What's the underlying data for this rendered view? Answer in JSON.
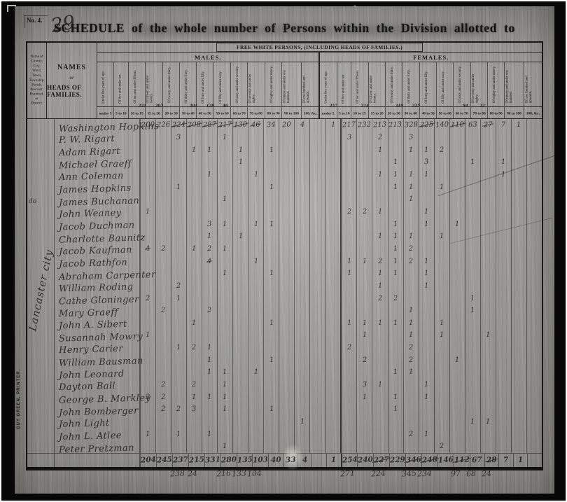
{
  "page": {
    "form_number": "No. 4.",
    "handwritten_number": "29",
    "title": "SCHEDULE of the whole number of Persons within the Division allotted to",
    "margin_note": "Lancaster city",
    "printer_credit": "GUY GREEN, PRINTER.",
    "ditto_mark": "do"
  },
  "table": {
    "county_header": "Name of\nCounty,\nCity, Ward,\nTown,\nTownship,\nParish,\nPrecinct,\nHundred,\nor\nDistrict.",
    "names_header_line1": "NAMES",
    "names_header_line2": "or",
    "names_header_line3": "HEADS OF FAMILIES.",
    "group_header": "FREE WHITE PERSONS, (INCLUDING HEADS OF FAMILIES.)",
    "males_header": "MALES.",
    "females_header": "FEMALES.",
    "age_labels_long": [
      "Under five years of age.",
      "Of five and under ten.",
      "Of ten and under fifteen.",
      "Of fifteen and under twenty.",
      "Of twenty and under thirty.",
      "Of thirty and under forty.",
      "Of forty and under fifty.",
      "Of fifty and under sixty.",
      "Of sixty and under seventy.",
      "Of seventy and under eighty.",
      "Of eighty and under ninety.",
      "Of ninety and under one hundred.",
      "Of one hundred and upwards."
    ],
    "age_labels_short": [
      "under 5",
      "5 to 10",
      "10 to 15",
      "15 to 20",
      "20 to 30",
      "30 to 40",
      "40 to 50",
      "50 to 60",
      "60 to 70",
      "70 to 80",
      "80 to 90",
      "90 to 100",
      "100, &c."
    ],
    "header_corrections": [
      {
        "c": 2,
        "v": "224"
      },
      {
        "c": 3,
        "v": "203"
      },
      {
        "c": 5,
        "v": "204"
      },
      {
        "c": 6,
        "v": "128"
      },
      {
        "c": 7,
        "v": "46"
      },
      {
        "c": 13,
        "v": "257"
      },
      {
        "c": 15,
        "v": "214"
      },
      {
        "c": 17,
        "v": "319"
      },
      {
        "c": 18,
        "v": "225"
      },
      {
        "c": 21,
        "v": "94"
      },
      {
        "c": 22,
        "v": "22"
      }
    ],
    "rows": [
      {
        "name": "Washington Hopkins",
        "cells": [
          {
            "c": 0,
            "v": "200"
          },
          {
            "c": 1,
            "v": "226"
          },
          {
            "c": 2,
            "v": "224",
            "s": true
          },
          {
            "c": 3,
            "v": "208",
            "s": true
          },
          {
            "c": 4,
            "v": "287",
            "s": true
          },
          {
            "c": 5,
            "v": "217",
            "s": true
          },
          {
            "c": 6,
            "v": "130",
            "s": true
          },
          {
            "c": 7,
            "v": "46",
            "s": true
          },
          {
            "c": 8,
            "v": "34"
          },
          {
            "c": 9,
            "v": "20"
          },
          {
            "c": 10,
            "v": "4"
          },
          {
            "c": 12,
            "v": "1"
          },
          {
            "c": 13,
            "v": "217"
          },
          {
            "c": 14,
            "v": "232"
          },
          {
            "c": 15,
            "v": "213"
          },
          {
            "c": 16,
            "v": "213"
          },
          {
            "c": 17,
            "v": "328"
          },
          {
            "c": 18,
            "v": "225",
            "s": true
          },
          {
            "c": 19,
            "v": "140"
          },
          {
            "c": 20,
            "v": "110",
            "s": true
          },
          {
            "c": 21,
            "v": "63"
          },
          {
            "c": 22,
            "v": "27",
            "s": true
          },
          {
            "c": 23,
            "v": "7"
          },
          {
            "c": 24,
            "v": "1"
          }
        ]
      },
      {
        "name": "P. W. Rigart",
        "cells": [
          {
            "c": 2,
            "v": "3"
          },
          {
            "c": 5,
            "v": "1"
          },
          {
            "c": 13,
            "v": "3"
          },
          {
            "c": 15,
            "v": "2"
          },
          {
            "c": 17,
            "v": "3"
          }
        ]
      },
      {
        "name": "Adam Rigart",
        "cells": [
          {
            "c": 3,
            "v": "1"
          },
          {
            "c": 4,
            "v": "1"
          },
          {
            "c": 6,
            "v": "1"
          },
          {
            "c": 8,
            "v": "1"
          },
          {
            "c": 15,
            "v": "1"
          },
          {
            "c": 17,
            "v": "1"
          },
          {
            "c": 18,
            "v": "1"
          },
          {
            "c": 19,
            "v": "2"
          }
        ]
      },
      {
        "name": "Michael Graeff",
        "cells": [
          {
            "c": 6,
            "v": "1"
          },
          {
            "c": 16,
            "v": "1"
          },
          {
            "c": 18,
            "v": "3"
          },
          {
            "c": 21,
            "v": "1"
          },
          {
            "c": 23,
            "v": "1"
          }
        ]
      },
      {
        "name": "Ann Coleman",
        "cells": [
          {
            "c": 4,
            "v": "1"
          },
          {
            "c": 7,
            "v": "1"
          },
          {
            "c": 15,
            "v": "1"
          },
          {
            "c": 16,
            "v": "1"
          },
          {
            "c": 17,
            "v": "1"
          },
          {
            "c": 18,
            "v": "1"
          },
          {
            "c": 23,
            "v": "1"
          }
        ]
      },
      {
        "name": "James Hopkins",
        "cells": [
          {
            "c": 2,
            "v": "1"
          },
          {
            "c": 8,
            "v": "1"
          },
          {
            "c": 16,
            "v": "1"
          },
          {
            "c": 17,
            "v": "1"
          },
          {
            "c": 19,
            "v": "1"
          }
        ]
      },
      {
        "name": "James Buchanan",
        "ditto": true,
        "cells": [
          {
            "c": 5,
            "v": "1"
          },
          {
            "c": 17,
            "v": "1"
          }
        ]
      },
      {
        "name": "John Weaney",
        "cells": [
          {
            "c": 0,
            "v": "1"
          },
          {
            "c": 13,
            "v": "2"
          },
          {
            "c": 14,
            "v": "2"
          },
          {
            "c": 15,
            "v": "1"
          },
          {
            "c": 18,
            "v": "1"
          }
        ]
      },
      {
        "name": "Jacob Duchman",
        "cells": [
          {
            "c": 4,
            "v": "3"
          },
          {
            "c": 5,
            "v": "1"
          },
          {
            "c": 7,
            "v": "1"
          },
          {
            "c": 8,
            "v": "1"
          },
          {
            "c": 16,
            "v": "1"
          },
          {
            "c": 18,
            "v": "1"
          },
          {
            "c": 20,
            "v": "1"
          }
        ]
      },
      {
        "name": "Charlotte Baunitz",
        "cells": [
          {
            "c": 4,
            "v": "1"
          },
          {
            "c": 6,
            "v": "1"
          },
          {
            "c": 15,
            "v": "1"
          },
          {
            "c": 16,
            "v": "1"
          },
          {
            "c": 17,
            "v": "1"
          },
          {
            "c": 19,
            "v": "1"
          }
        ]
      },
      {
        "name": "Jacob Kaufman",
        "cells": [
          {
            "c": 0,
            "v": "4",
            "s": true
          },
          {
            "c": 1,
            "v": "2"
          },
          {
            "c": 3,
            "v": "1"
          },
          {
            "c": 4,
            "v": "2"
          },
          {
            "c": 5,
            "v": "1"
          },
          {
            "c": 16,
            "v": "1"
          },
          {
            "c": 17,
            "v": "2"
          }
        ]
      },
      {
        "name": "Jacob Rathfon",
        "cells": [
          {
            "c": 4,
            "v": "4",
            "s": true
          },
          {
            "c": 7,
            "v": "1"
          },
          {
            "c": 13,
            "v": "1"
          },
          {
            "c": 14,
            "v": "1"
          },
          {
            "c": 15,
            "v": "2"
          },
          {
            "c": 16,
            "v": "1"
          },
          {
            "c": 17,
            "v": "2"
          },
          {
            "c": 18,
            "v": "1"
          }
        ]
      },
      {
        "name": "Abraham Carpenter",
        "cells": [
          {
            "c": 5,
            "v": "1"
          },
          {
            "c": 8,
            "v": "1"
          },
          {
            "c": 13,
            "v": "1"
          },
          {
            "c": 15,
            "v": "1"
          },
          {
            "c": 16,
            "v": "1"
          },
          {
            "c": 18,
            "v": "1"
          }
        ]
      },
      {
        "name": "William Roding",
        "cells": [
          {
            "c": 2,
            "v": "2"
          },
          {
            "c": 15,
            "v": "1"
          },
          {
            "c": 18,
            "v": "1"
          }
        ]
      },
      {
        "name": "Cathe Gloninger",
        "cells": [
          {
            "c": 0,
            "v": "2"
          },
          {
            "c": 2,
            "v": "1"
          },
          {
            "c": 15,
            "v": "2"
          },
          {
            "c": 16,
            "v": "2"
          },
          {
            "c": 21,
            "v": "1"
          }
        ]
      },
      {
        "name": "Mary Graeff",
        "cells": [
          {
            "c": 1,
            "v": "2"
          },
          {
            "c": 4,
            "v": "2"
          },
          {
            "c": 17,
            "v": "1"
          },
          {
            "c": 21,
            "v": "1"
          }
        ]
      },
      {
        "name": "John A. Sibert",
        "cells": [
          {
            "c": 3,
            "v": "1"
          },
          {
            "c": 8,
            "v": "1"
          },
          {
            "c": 13,
            "v": "1"
          },
          {
            "c": 14,
            "v": "1"
          },
          {
            "c": 15,
            "v": "1"
          },
          {
            "c": 16,
            "v": "1"
          },
          {
            "c": 17,
            "v": "1"
          },
          {
            "c": 19,
            "v": "1"
          }
        ]
      },
      {
        "name": "Susannah Mowry",
        "cells": [
          {
            "c": 0,
            "v": "1"
          },
          {
            "c": 14,
            "v": "1"
          },
          {
            "c": 17,
            "v": "1"
          },
          {
            "c": 19,
            "v": "1"
          },
          {
            "c": 22,
            "v": "1"
          }
        ]
      },
      {
        "name": "Henry Carier",
        "cells": [
          {
            "c": 2,
            "v": "1"
          },
          {
            "c": 3,
            "v": "2"
          },
          {
            "c": 4,
            "v": "1"
          },
          {
            "c": 13,
            "v": "2"
          },
          {
            "c": 17,
            "v": "2"
          }
        ]
      },
      {
        "name": "William Bausman",
        "cells": [
          {
            "c": 4,
            "v": "1"
          },
          {
            "c": 8,
            "v": "1"
          },
          {
            "c": 14,
            "v": "2"
          },
          {
            "c": 17,
            "v": "2"
          },
          {
            "c": 20,
            "v": "1"
          }
        ]
      },
      {
        "name": "John Leonard",
        "cells": [
          {
            "c": 4,
            "v": "1"
          },
          {
            "c": 5,
            "v": "1"
          },
          {
            "c": 7,
            "v": "1"
          },
          {
            "c": 16,
            "v": "1"
          },
          {
            "c": 17,
            "v": "1"
          }
        ]
      },
      {
        "name": "Dayton Ball",
        "cells": [
          {
            "c": 1,
            "v": "2"
          },
          {
            "c": 3,
            "v": "2"
          },
          {
            "c": 5,
            "v": "1"
          },
          {
            "c": 14,
            "v": "3"
          },
          {
            "c": 15,
            "v": "1"
          },
          {
            "c": 18,
            "v": "1"
          }
        ]
      },
      {
        "name": "George B. Markley",
        "cells": [
          {
            "c": 0,
            "v": "3"
          },
          {
            "c": 1,
            "v": "2"
          },
          {
            "c": 3,
            "v": "1"
          },
          {
            "c": 4,
            "v": "1"
          },
          {
            "c": 5,
            "v": "1"
          },
          {
            "c": 14,
            "v": "1"
          },
          {
            "c": 16,
            "v": "1"
          },
          {
            "c": 18,
            "v": "1"
          }
        ]
      },
      {
        "name": "John Bomberger",
        "cells": [
          {
            "c": 1,
            "v": "2"
          },
          {
            "c": 2,
            "v": "2"
          },
          {
            "c": 3,
            "v": "3"
          },
          {
            "c": 5,
            "v": "1"
          },
          {
            "c": 8,
            "v": "1"
          },
          {
            "c": 16,
            "v": "1"
          }
        ]
      },
      {
        "name": "John Light",
        "cells": [
          {
            "c": 10,
            "v": "1"
          },
          {
            "c": 21,
            "v": "1"
          },
          {
            "c": 22,
            "v": "1"
          }
        ]
      },
      {
        "name": "John L. Atlee",
        "cells": [
          {
            "c": 0,
            "v": "1"
          },
          {
            "c": 2,
            "v": "1"
          },
          {
            "c": 4,
            "v": "1"
          },
          {
            "c": 17,
            "v": "2"
          },
          {
            "c": 18,
            "v": "1"
          }
        ]
      },
      {
        "name": "Peter Pretzman",
        "cells": [
          {
            "c": 5,
            "v": "1"
          },
          {
            "c": 19,
            "v": "2"
          }
        ]
      }
    ],
    "totals": [
      {
        "c": 0,
        "v": "204"
      },
      {
        "c": 1,
        "v": "245"
      },
      {
        "c": 2,
        "v": "237"
      },
      {
        "c": 3,
        "v": "215"
      },
      {
        "c": 4,
        "v": "331"
      },
      {
        "c": 5,
        "v": "280"
      },
      {
        "c": 6,
        "v": "135"
      },
      {
        "c": 7,
        "v": "103"
      },
      {
        "c": 8,
        "v": "40"
      },
      {
        "c": 9,
        "v": "33"
      },
      {
        "c": 10,
        "v": "4"
      },
      {
        "c": 12,
        "v": "1"
      },
      {
        "c": 13,
        "v": "254"
      },
      {
        "c": 14,
        "v": "240"
      },
      {
        "c": 15,
        "v": "227",
        "s": true
      },
      {
        "c": 16,
        "v": "229"
      },
      {
        "c": 17,
        "v": "346",
        "s": true
      },
      {
        "c": 18,
        "v": "248",
        "s": true
      },
      {
        "c": 19,
        "v": "146"
      },
      {
        "c": 20,
        "v": "112",
        "s": true
      },
      {
        "c": 21,
        "v": "67"
      },
      {
        "c": 22,
        "v": "28",
        "s": true
      },
      {
        "c": 23,
        "v": "7"
      },
      {
        "c": 24,
        "v": "1"
      }
    ],
    "corrections": [
      {
        "c": 2,
        "v": "238"
      },
      {
        "c": 3,
        "v": "24"
      },
      {
        "c": 5,
        "v": "216"
      },
      {
        "c": 6,
        "v": "133"
      },
      {
        "c": 7,
        "v": "104"
      },
      {
        "c": 13,
        "v": "271"
      },
      {
        "c": 15,
        "v": "224"
      },
      {
        "c": 17,
        "v": "345"
      },
      {
        "c": 18,
        "v": "234"
      },
      {
        "c": 20,
        "v": "97"
      },
      {
        "c": 21,
        "v": "68"
      },
      {
        "c": 22,
        "v": "24"
      }
    ]
  }
}
